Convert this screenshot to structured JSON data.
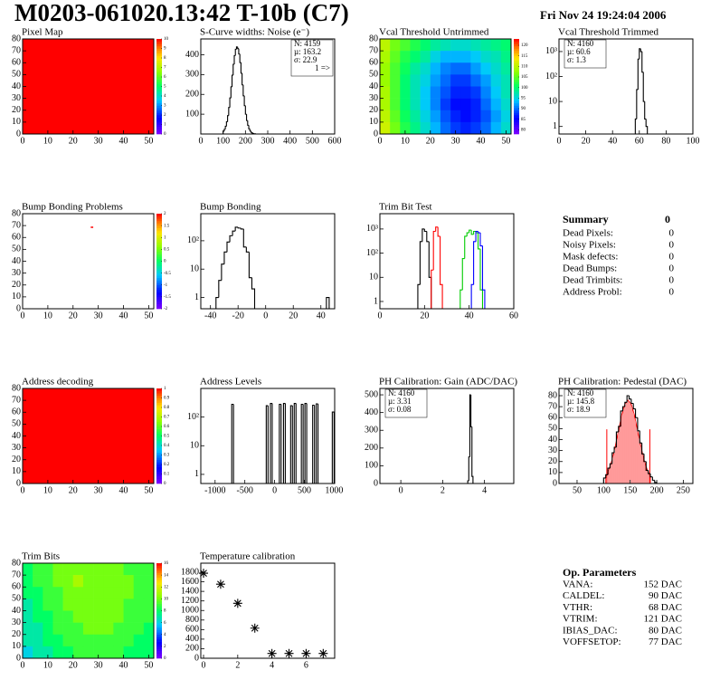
{
  "header": {
    "title": "M0203-061020.13:42 T-10b (C7)",
    "date": "Fri Nov 24 19:24:04 2006"
  },
  "summary": {
    "title": "Summary",
    "value": 0,
    "rows": [
      [
        "Dead Pixels:",
        0
      ],
      [
        "Noisy Pixels:",
        0
      ],
      [
        "Mask defects:",
        0
      ],
      [
        "Dead Bumps:",
        0
      ],
      [
        "Dead Trimbits:",
        0
      ],
      [
        "Address Probl:",
        0
      ]
    ]
  },
  "parameters": {
    "title": "Op. Parameters",
    "rows": [
      [
        "VANA:",
        "152 DAC"
      ],
      [
        "CALDEL:",
        "90 DAC"
      ],
      [
        "VTHR:",
        "68 DAC"
      ],
      [
        "VTRIM:",
        "121 DAC"
      ],
      [
        "IBIAS_DAC:",
        "80 DAC"
      ],
      [
        "VOFFSETOP:",
        "77 DAC"
      ]
    ]
  },
  "chart_data": [
    {
      "type": "heatmap",
      "title": "Pixel Map",
      "value": 10,
      "zlim": [
        0,
        10
      ],
      "zticks": [
        0,
        1,
        2,
        3,
        4,
        5,
        6,
        7,
        8,
        9,
        10
      ],
      "xlim": [
        0,
        52
      ],
      "xticks": [
        0,
        10,
        20,
        30,
        40,
        50
      ],
      "ylim": [
        0,
        80
      ],
      "yticks": [
        0,
        10,
        20,
        30,
        40,
        50,
        60,
        70,
        80
      ]
    },
    {
      "type": "histogram",
      "title": "S-Curve widths: Noise (e⁻)",
      "xlim": [
        0,
        600
      ],
      "xticks": [
        0,
        100,
        200,
        300,
        400,
        500,
        600
      ],
      "ylim": [
        0,
        480
      ],
      "yticks": [
        100,
        200,
        300,
        400
      ],
      "series": [
        {
          "color": "#000000",
          "bins": [
            100,
            105,
            110,
            115,
            120,
            125,
            130,
            135,
            140,
            145,
            150,
            155,
            160,
            165,
            170,
            175,
            180,
            185,
            190,
            195,
            200,
            205,
            210,
            215,
            220,
            225,
            230,
            235,
            240,
            245
          ],
          "values": [
            14,
            24,
            39,
            62,
            93,
            134,
            182,
            238,
            297,
            352,
            396,
            428,
            440,
            431,
            404,
            361,
            307,
            248,
            193,
            143,
            100,
            68,
            44,
            26,
            15,
            8,
            5,
            2,
            1
          ]
        }
      ],
      "stats": [
        {
          "text": "N: 4159",
          "color": "#000000"
        },
        {
          "text": "µ: 163.2",
          "color": "#000000"
        },
        {
          "text": "σ: 22.9",
          "color": "#000000"
        }
      ],
      "stats_corner": "right",
      "annotation": "1 =>"
    },
    {
      "type": "heatmap",
      "title": "Vcal Threshold Untrimmed",
      "values": [
        [
          110,
          106,
          104,
          102,
          100,
          98,
          97,
          96,
          96,
          97,
          98,
          99,
          100
        ],
        [
          109,
          105,
          102,
          100,
          98,
          95,
          93,
          93,
          93,
          94,
          96,
          97,
          99
        ],
        [
          108,
          104,
          101,
          98,
          96,
          93,
          91,
          90,
          90,
          92,
          94,
          96,
          98
        ],
        [
          108,
          104,
          100,
          97,
          95,
          92,
          90,
          88,
          88,
          90,
          92,
          95,
          97
        ],
        [
          109,
          104,
          100,
          97,
          94,
          91,
          89,
          87,
          87,
          88,
          91,
          94,
          97
        ],
        [
          109,
          104,
          100,
          97,
          94,
          91,
          88,
          86,
          86,
          87,
          90,
          93,
          96
        ],
        [
          110,
          105,
          101,
          98,
          95,
          92,
          89,
          87,
          86,
          87,
          89,
          92,
          95
        ],
        [
          111,
          106,
          102,
          99,
          96,
          93,
          90,
          88,
          87,
          88,
          90,
          93,
          96
        ]
      ],
      "zlim": [
        78,
        123
      ],
      "zticks": [
        80,
        85,
        90,
        95,
        100,
        105,
        110,
        115,
        120
      ],
      "xlim": [
        0,
        52
      ],
      "xticks": [
        0,
        10,
        20,
        30,
        40,
        50
      ],
      "ylim": [
        0,
        80
      ],
      "yticks": [
        0,
        10,
        20,
        30,
        40,
        50,
        60,
        70,
        80
      ]
    },
    {
      "type": "histogram",
      "title": "Vcal Threshold Trimmed",
      "log": true,
      "xlim": [
        0,
        100
      ],
      "xticks": [
        0,
        20,
        40,
        60,
        80,
        100
      ],
      "ylim": [
        0.5,
        3200
      ],
      "yticks": [
        1,
        10,
        {
          "value": 100,
          "label": "10²"
        },
        {
          "value": 1000,
          "label": "10³"
        }
      ],
      "series": [
        {
          "color": "#000000",
          "bins": [
            57,
            58,
            59,
            60,
            61,
            62,
            63,
            64,
            65,
            66
          ],
          "values": [
            2,
            30,
            500,
            1300,
            1000,
            150,
            10,
            2,
            1
          ]
        }
      ],
      "stats": [
        {
          "text": "N: 4160",
          "color": "#000000"
        },
        {
          "text": "µ: 60.6",
          "color": "#000000"
        },
        {
          "text": "σ:  1.3",
          "color": "#000000"
        }
      ],
      "stats_corner": "left"
    },
    {
      "type": "heatmap",
      "title": "Bump Bonding Problems",
      "pixels": {
        "x": [
          27
        ],
        "y": [
          68
        ],
        "values": [
          2
        ]
      },
      "zlim": [
        -2,
        2
      ],
      "zticks": [
        -2,
        -1.5,
        -1,
        -0.5,
        0,
        0.5,
        1,
        1.5,
        2
      ],
      "xlim": [
        0,
        52
      ],
      "xticks": [
        0,
        10,
        20,
        30,
        40,
        50
      ],
      "ylim": [
        0,
        80
      ],
      "yticks": [
        0,
        10,
        20,
        30,
        40,
        50,
        60,
        70,
        80
      ]
    },
    {
      "type": "histogram",
      "title": "Bump Bonding",
      "log": true,
      "xlim": [
        -47,
        50
      ],
      "xticks": [
        -40,
        -20,
        0,
        20,
        40
      ],
      "ylim": [
        0.4,
        900
      ],
      "yticks": [
        1,
        10,
        {
          "value": 100,
          "label": "10²"
        }
      ],
      "series": [
        {
          "color": "#000000",
          "bins": [
            -36,
            -34,
            -32,
            -30,
            -28,
            -26,
            -24,
            -22,
            -20,
            -18,
            -16,
            -14,
            -12,
            -10,
            -8
          ],
          "values": [
            1,
            4,
            15,
            40,
            90,
            150,
            220,
            300,
            280,
            260,
            60,
            40,
            5,
            2
          ]
        },
        {
          "color": "#000000",
          "bins": [
            44,
            46
          ],
          "values": [
            1
          ]
        }
      ]
    },
    {
      "type": "histogram",
      "title": "Trim Bit Test",
      "log": true,
      "xlim": [
        0,
        60
      ],
      "xticks": [
        0,
        20,
        40,
        60
      ],
      "ylim": [
        0.5,
        4300
      ],
      "yticks": [
        1,
        10,
        {
          "value": 100,
          "label": "10²"
        },
        {
          "value": 1000,
          "label": "10³"
        }
      ],
      "series": [
        {
          "color": "#000000",
          "bins": [
            17,
            18,
            19,
            20,
            21,
            22,
            23
          ],
          "values": [
            5,
            300,
            1000,
            800,
            300,
            10
          ]
        },
        {
          "color": "#ff0000",
          "bins": [
            23,
            24,
            25,
            26,
            27,
            28
          ],
          "values": [
            20,
            800,
            1200,
            500,
            5
          ]
        },
        {
          "color": "#00cc00",
          "bins": [
            36,
            37,
            38,
            39,
            40,
            41,
            42,
            43,
            44,
            45,
            46
          ],
          "values": [
            3,
            60,
            500,
            700,
            900,
            600,
            800,
            700,
            150,
            3
          ]
        },
        {
          "color": "#0000ff",
          "bins": [
            41,
            42,
            43,
            44,
            45,
            46,
            47
          ],
          "values": [
            5,
            300,
            800,
            700,
            200,
            3
          ]
        }
      ]
    },
    {
      "type": "heatmap",
      "title": "Address decoding",
      "value": 1,
      "zlim": [
        0,
        1
      ],
      "zticks": [
        0,
        0.1,
        0.2,
        0.3,
        0.4,
        0.5,
        0.6,
        0.7,
        0.8,
        0.9,
        1
      ],
      "xlim": [
        0,
        52
      ],
      "xticks": [
        0,
        10,
        20,
        30,
        40,
        50
      ],
      "ylim": [
        0,
        80
      ],
      "yticks": [
        0,
        10,
        20,
        30,
        40,
        50,
        60,
        70,
        80
      ]
    },
    {
      "type": "histogram",
      "title": "Address Levels",
      "log": true,
      "xlim": [
        -1240,
        1010
      ],
      "xticks": [
        -1000,
        -500,
        0,
        500,
        1000
      ],
      "ylim": [
        0.48,
        1000
      ],
      "yticks": [
        1,
        10,
        {
          "value": 100,
          "label": "10²"
        }
      ],
      "series": [
        {
          "color": "#000000",
          "bins": [
            -720,
            -690,
            -140,
            -110,
            -70,
            -40,
            80,
            110,
            150,
            180,
            270,
            300,
            330,
            360,
            450,
            480,
            510,
            540,
            640,
            670,
            700,
            730,
            970,
            1000
          ],
          "values": [
            280,
            0,
            250,
            0,
            300,
            0,
            280,
            0,
            300,
            0,
            250,
            0,
            300,
            0,
            280,
            0,
            300,
            0,
            260,
            0,
            290,
            0,
            150
          ]
        }
      ]
    },
    {
      "type": "histogram",
      "title": "PH Calibration: Gain (ADC/DAC)",
      "xlim": [
        -1,
        5.4
      ],
      "xticks": [
        0,
        2,
        4
      ],
      "ylim": [
        0,
        536
      ],
      "yticks": [
        0,
        100,
        200,
        300,
        400,
        500
      ],
      "series": [
        {
          "color": "#000000",
          "bins": [
            3.2,
            3.25,
            3.3,
            3.35,
            3.4,
            3.45
          ],
          "values": [
            15,
            150,
            500,
            320,
            40
          ]
        }
      ],
      "stats": [
        {
          "text": "N: 4160",
          "color": "#000000"
        },
        {
          "text": "µ: 3.31",
          "color": "#000000"
        },
        {
          "text": "σ: 0.08",
          "color": "#000000"
        }
      ],
      "stats_corner": "left"
    },
    {
      "type": "histogram",
      "title": "PH Calibration: Pedestal (DAC)",
      "xlim": [
        16,
        268
      ],
      "xticks": [
        50,
        100,
        150,
        200,
        250
      ],
      "ylim": [
        0,
        86.6
      ],
      "yticks": [
        0,
        10,
        20,
        30,
        40,
        50,
        60,
        70,
        80
      ],
      "series": [
        {
          "color": "#000000",
          "bins": [
            100,
            104,
            108,
            112,
            116,
            120,
            124,
            128,
            132,
            136,
            140,
            144,
            148,
            152,
            156,
            160,
            164,
            168,
            172,
            176,
            180,
            184,
            188,
            192,
            196,
            200
          ],
          "values": [
            5,
            8,
            14,
            18,
            28,
            33,
            47,
            52,
            66,
            70,
            74,
            80,
            77,
            73,
            68,
            60,
            48,
            37,
            27,
            20,
            12,
            9,
            6,
            3,
            1
          ]
        }
      ],
      "fit": {
        "color": "#ff0000",
        "x": [
          104,
          110,
          116,
          122,
          128,
          134,
          140,
          146,
          152,
          158,
          164,
          170,
          176,
          182,
          188
        ],
        "values": [
          6.6,
          12.7,
          21.8,
          34.3,
          48.4,
          62.4,
          72.3,
          76,
          72.3,
          62.4,
          48.4,
          34.3,
          21.8,
          12.7,
          6.6
        ],
        "range": [
          106,
          187
        ]
      },
      "stats": [
        {
          "text": "N: 4160",
          "color": "#000000"
        },
        {
          "text": "µ: 145.8",
          "color": "#ff0000"
        },
        {
          "text": "σ: 18.9",
          "color": "#ff0000"
        }
      ],
      "stats_corner": "left"
    },
    {
      "type": "heatmap",
      "title": "Trim Bits",
      "values": [
        [
          8,
          9,
          9,
          10,
          10,
          10,
          10,
          10,
          10,
          10,
          9,
          9,
          9
        ],
        [
          8,
          9,
          9,
          10,
          10,
          11,
          10,
          10,
          10,
          10,
          10,
          9,
          9
        ],
        [
          8,
          8,
          9,
          9,
          10,
          10,
          10,
          10,
          10,
          10,
          10,
          9,
          9
        ],
        [
          7,
          8,
          9,
          9,
          10,
          10,
          10,
          10,
          10,
          10,
          9,
          9,
          9
        ],
        [
          7,
          8,
          8,
          9,
          9,
          10,
          10,
          10,
          10,
          10,
          9,
          9,
          9
        ],
        [
          7,
          7,
          8,
          9,
          9,
          9,
          10,
          10,
          10,
          9,
          9,
          9,
          8
        ],
        [
          7,
          7,
          8,
          8,
          9,
          9,
          9,
          9,
          9,
          9,
          9,
          8,
          8
        ],
        [
          6,
          7,
          7,
          8,
          8,
          9,
          9,
          9,
          9,
          9,
          8,
          8,
          8
        ]
      ],
      "zlim": [
        0,
        16
      ],
      "zticks": [
        0,
        2,
        4,
        6,
        8,
        10,
        12,
        14,
        16
      ],
      "xlim": [
        0,
        52
      ],
      "xticks": [
        0,
        10,
        20,
        30,
        40,
        50
      ],
      "ylim": [
        0,
        80
      ],
      "yticks": [
        0,
        10,
        20,
        30,
        40,
        50,
        60,
        70,
        80
      ]
    },
    {
      "type": "scatter",
      "title": "Temperature calibration",
      "color": "#000000",
      "x": [
        0,
        1,
        2,
        3,
        4,
        5,
        6,
        7
      ],
      "values": [
        1780,
        1550,
        1150,
        630,
        100,
        100,
        100,
        100
      ],
      "xlim": [
        -0.16,
        7.67
      ],
      "xticks": [
        0,
        2,
        4,
        6
      ],
      "ylim": [
        0,
        1990
      ],
      "yticks": [
        0,
        200,
        400,
        600,
        800,
        1000,
        1200,
        1400,
        1600,
        1800
      ]
    }
  ]
}
